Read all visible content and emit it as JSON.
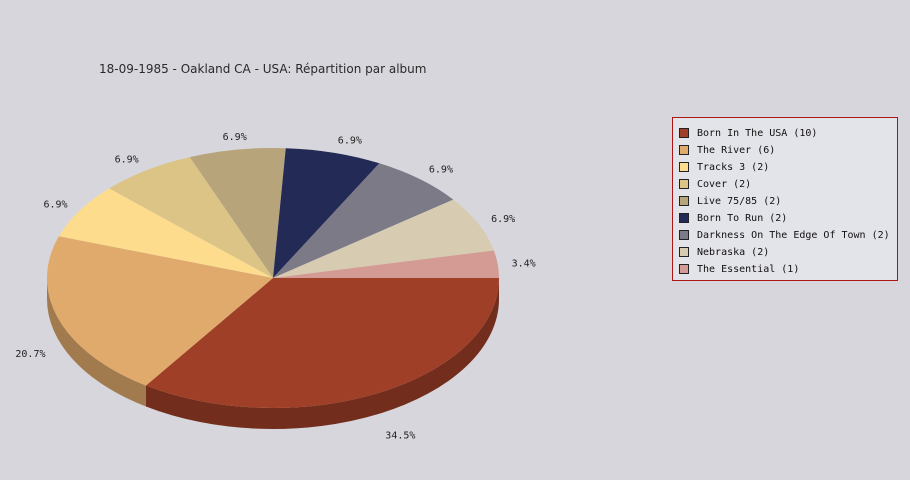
{
  "title": "18-09-1985 - Oakland CA - USA:  Répartition par album",
  "chart_data": {
    "type": "pie",
    "title": "18-09-1985 - Oakland CA - USA:  Répartition par album",
    "slices": [
      {
        "label": "Born In The USA (10)",
        "value": 34.5,
        "pct_label": "34.5%",
        "color": "#a03f27"
      },
      {
        "label": "The River (6)",
        "value": 20.7,
        "pct_label": "20.7%",
        "color": "#e0aa6c"
      },
      {
        "label": "Tracks 3 (2)",
        "value": 6.9,
        "pct_label": "6.9%",
        "color": "#fddc8d"
      },
      {
        "label": "Cover (2)",
        "value": 6.9,
        "pct_label": "6.9%",
        "color": "#dcc486"
      },
      {
        "label": "Live 75/85 (2)",
        "value": 6.9,
        "pct_label": "6.9%",
        "color": "#b7a47b"
      },
      {
        "label": "Born To Run (2)",
        "value": 6.9,
        "pct_label": "6.9%",
        "color": "#222a55"
      },
      {
        "label": "Darkness On The Edge Of Town (2)",
        "value": 6.9,
        "pct_label": "6.9%",
        "color": "#7b7a86"
      },
      {
        "label": "Nebraska (2)",
        "value": 6.9,
        "pct_label": "6.9%",
        "color": "#d7cbb2"
      },
      {
        "label": "The Essential (1)",
        "value": 3.4,
        "pct_label": "3.4%",
        "color": "#d49b94"
      }
    ],
    "legend_position": "right"
  }
}
